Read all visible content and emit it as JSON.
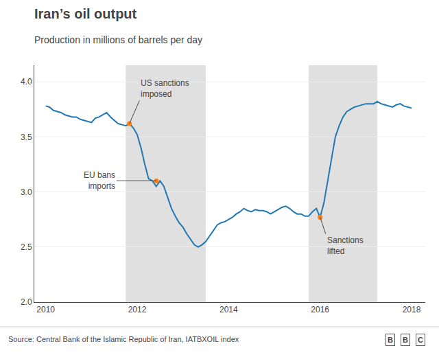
{
  "chart_data": {
    "type": "line",
    "title": "Iran’s oil output",
    "subtitle": "Production in millions of barrels per day",
    "source": "Source: Central Bank of the Islamic Republic of Iran, IATBXOIL index",
    "logo": "BBC",
    "x": [
      2010.0,
      2010.083,
      2010.167,
      2010.25,
      2010.333,
      2010.417,
      2010.5,
      2010.583,
      2010.667,
      2010.75,
      2010.833,
      2010.917,
      2011.0,
      2011.083,
      2011.167,
      2011.25,
      2011.333,
      2011.417,
      2011.5,
      2011.583,
      2011.667,
      2011.75,
      2011.833,
      2011.917,
      2012.0,
      2012.083,
      2012.167,
      2012.25,
      2012.333,
      2012.417,
      2012.5,
      2012.583,
      2012.667,
      2012.75,
      2012.833,
      2012.917,
      2013.0,
      2013.083,
      2013.167,
      2013.25,
      2013.333,
      2013.417,
      2013.5,
      2013.583,
      2013.667,
      2013.75,
      2013.833,
      2013.917,
      2014.0,
      2014.083,
      2014.167,
      2014.25,
      2014.333,
      2014.417,
      2014.5,
      2014.583,
      2014.667,
      2014.75,
      2014.833,
      2014.917,
      2015.0,
      2015.083,
      2015.167,
      2015.25,
      2015.333,
      2015.417,
      2015.5,
      2015.583,
      2015.667,
      2015.75,
      2015.833,
      2015.917,
      2016.0,
      2016.083,
      2016.167,
      2016.25,
      2016.333,
      2016.417,
      2016.5,
      2016.583,
      2016.667,
      2016.75,
      2016.833,
      2016.917,
      2017.0,
      2017.083,
      2017.167,
      2017.25,
      2017.333,
      2017.417,
      2017.5,
      2017.583,
      2017.667,
      2017.75,
      2017.833,
      2017.917,
      2018.0
    ],
    "values": [
      3.78,
      3.77,
      3.74,
      3.73,
      3.72,
      3.7,
      3.69,
      3.68,
      3.68,
      3.66,
      3.65,
      3.64,
      3.63,
      3.67,
      3.68,
      3.7,
      3.72,
      3.68,
      3.65,
      3.62,
      3.61,
      3.6,
      3.62,
      3.58,
      3.52,
      3.4,
      3.25,
      3.12,
      3.1,
      3.05,
      3.1,
      3.05,
      2.95,
      2.85,
      2.78,
      2.72,
      2.68,
      2.62,
      2.57,
      2.52,
      2.5,
      2.52,
      2.55,
      2.6,
      2.65,
      2.7,
      2.72,
      2.73,
      2.75,
      2.77,
      2.8,
      2.82,
      2.85,
      2.83,
      2.82,
      2.84,
      2.83,
      2.83,
      2.82,
      2.8,
      2.82,
      2.84,
      2.86,
      2.87,
      2.85,
      2.82,
      2.8,
      2.8,
      2.78,
      2.78,
      2.82,
      2.85,
      2.77,
      2.9,
      3.1,
      3.3,
      3.5,
      3.6,
      3.68,
      3.73,
      3.75,
      3.77,
      3.78,
      3.79,
      3.8,
      3.8,
      3.8,
      3.82,
      3.8,
      3.79,
      3.78,
      3.77,
      3.79,
      3.8,
      3.78,
      3.77,
      3.76
    ],
    "xlim": [
      2009.75,
      2018.3
    ],
    "ylim": [
      2.0,
      4.15
    ],
    "xticks": [
      2010,
      2012,
      2014,
      2016,
      2018
    ],
    "yticks": [
      {
        "value": 2.0,
        "label": "2.0"
      },
      2.5,
      {
        "value": 3.0,
        "label": "3.0"
      },
      3.5,
      {
        "value": 4.0,
        "label": "4.0"
      }
    ],
    "grid": "y",
    "shade_regions": {
      "color": "#e0e0e0",
      "ranges": [
        [
          2011.75,
          2013.5
        ],
        [
          2015.75,
          2017.25
        ]
      ]
    },
    "annotations": [
      {
        "x": 2011.83,
        "y": 3.62,
        "text": "US sanctions\nimposed",
        "text_x": 2012.05,
        "text_y": 3.83
      },
      {
        "x": 2012.42,
        "y": 3.1,
        "text": "EU bans\nimports",
        "text_x": 2011.55,
        "text_y": 3.1
      },
      {
        "x": 2016.0,
        "y": 2.77,
        "text": "Sanctions\nlifted",
        "text_x": 2016.12,
        "text_y": 2.62
      }
    ]
  }
}
